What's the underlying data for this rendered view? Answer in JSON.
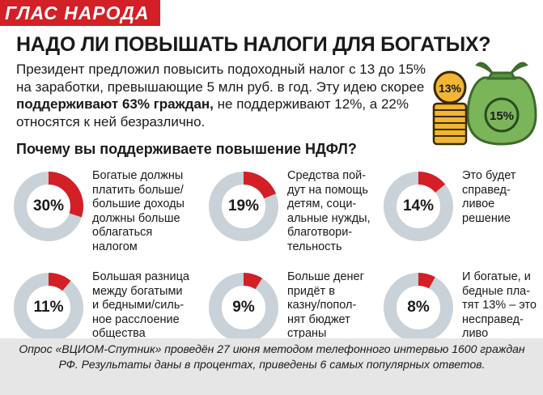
{
  "rubric": "ГЛАС НАРОДА",
  "headline": "НАДО ЛИ ПОВЫШАТЬ НАЛОГИ ДЛЯ БОГАТЫХ?",
  "lead": {
    "part1": "Президент предложил повысить подоходный налог с 13 до 15% на заработки, превышающие 5 млн руб. в год. Эту идею скорее ",
    "bold": "поддерживают 63% граждан,",
    "part2": " не поддерживают 12%, а 22% относятся к ней безразлично."
  },
  "question": "Почему вы поддерживаете повышение НДФЛ?",
  "illustration": {
    "coins_label": "13%",
    "bag_label": "15%",
    "coin_color": "#f2b632",
    "bag_color": "#7bb55a",
    "bag_dark": "#5a9442"
  },
  "colors": {
    "accent": "#d31f26",
    "ring": "#c9d2d8",
    "footnote_bg": "#e6e6e6"
  },
  "chart_data": {
    "type": "pie",
    "title": "Почему вы поддерживаете повышение НДФЛ?",
    "categories": [
      "Богатые должны платить больше/ большие доходы должны больше облагаться налогом",
      "Средства пойдут на помощь детям, социальные нужды, благотворительность",
      "Это будет справедливое решение",
      "Большая разница между богатыми и бедными/сильное расслоение общества",
      "Больше денег придёт в казну/пополнят бюджет страны",
      "И богатые, и бедные платят 13% – это несправедливо"
    ],
    "values": [
      30,
      19,
      14,
      11,
      9,
      8
    ],
    "labels": [
      "30%",
      "19%",
      "14%",
      "11%",
      "9%",
      "8%"
    ],
    "display_texts": [
      "Богатые должны\nплатить больше/\nбольшие доходы\nдолжны больше\nоблагаться\nналогом",
      "Средства пой-\nдут на помощь\nдетям, соци-\nальные нужды,\nблаготвори-\nтельность",
      "Это будет\nсправед-\nливое\nрешение",
      "Большая разница\nмежду богатыми\nи бедными/силь-\nное расслоение\nобщества",
      "Больше денег\nпридёт в\nказну/попол-\nнят бюджет\nстраны",
      "И богатые, и\nбедные пла-\nтят 13% – это\nнесправед-\nливо"
    ]
  },
  "footnote": "Опрос «ВЦИОМ-Спутник» проведён 27 июня методом телефонного интервью 1600 граждан РФ. Результаты даны в процентах, приведены 6 самых популярных ответов."
}
